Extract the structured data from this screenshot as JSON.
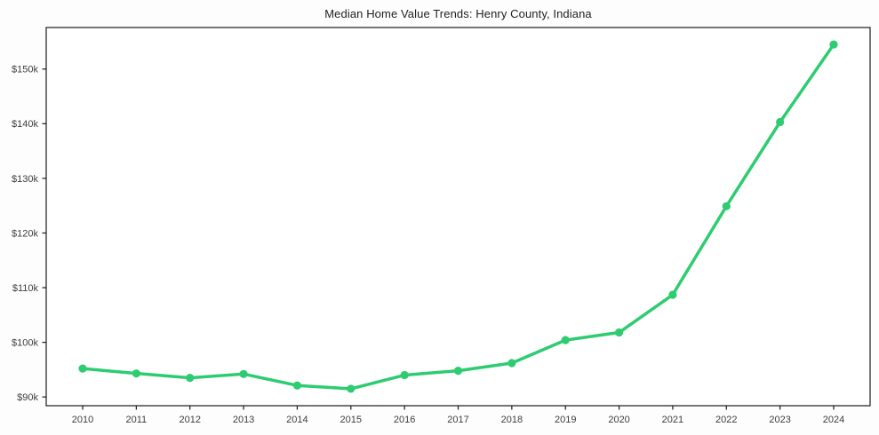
{
  "chart_data": {
    "type": "line",
    "title": "Median Home Value Trends: Henry County, Indiana",
    "series_name": "Median Home Value",
    "x": [
      2010,
      2011,
      2012,
      2013,
      2014,
      2015,
      2016,
      2017,
      2018,
      2019,
      2020,
      2021,
      2022,
      2023,
      2024
    ],
    "values": [
      95200,
      94300,
      93500,
      94200,
      92100,
      91500,
      94000,
      94800,
      96200,
      100400,
      101800,
      108700,
      124900,
      140300,
      154500
    ],
    "xtick_labels": [
      "2010",
      "2011",
      "2012",
      "2013",
      "2014",
      "2015",
      "2016",
      "2017",
      "2018",
      "2019",
      "2020",
      "2021",
      "2022",
      "2023",
      "2024"
    ],
    "yticks": [
      {
        "value": 90000,
        "label": "$90k"
      },
      {
        "value": 100000,
        "label": "$100k"
      },
      {
        "value": 110000,
        "label": "$110k"
      },
      {
        "value": 120000,
        "label": "$120k"
      },
      {
        "value": 130000,
        "label": "$130k"
      },
      {
        "value": 140000,
        "label": "$140k"
      },
      {
        "value": 150000,
        "label": "$150k"
      }
    ],
    "ylim": [
      88400,
      157600
    ],
    "xlabel": "",
    "ylabel": "",
    "grid": false,
    "legend": "none",
    "line_color": "#2ecc71",
    "marker_color": "#2ecc71",
    "spine_color": "#1a1a1a",
    "plot_background": "#ffffff",
    "figure_background": "#fdfdfd"
  }
}
